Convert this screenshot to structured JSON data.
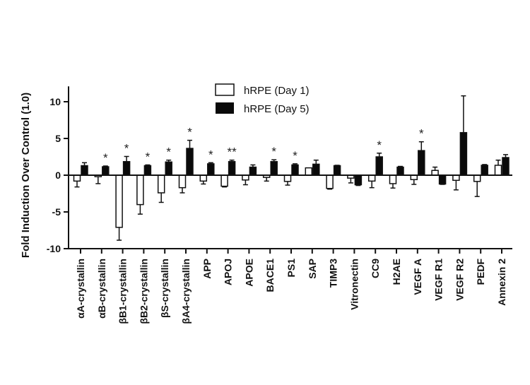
{
  "chart_data": {
    "type": "bar",
    "title": "",
    "xlabel": "",
    "ylabel": "Fold Induction Over Control (1.0)",
    "ylim": [
      -10,
      12
    ],
    "yticks": [
      -10,
      -5,
      0,
      5,
      10
    ],
    "ytick_labels": [
      "-10",
      "-5",
      "0",
      "5",
      "10"
    ],
    "legend_position": "top-center",
    "categories": [
      "αA-crystallin",
      "αB-crystallin",
      "βB1-crystallin",
      "βB2-crystallin",
      "βS-crystallin",
      "βA4-crystallin",
      "APP",
      "APOJ",
      "APOE",
      "BACE1",
      "PS1",
      "SAP",
      "TIMP3",
      "Vitronectin",
      "CC9",
      "H2AE",
      "VEGF A",
      "VEGF R1",
      "VEGF R2",
      "PEDF",
      "Annexin 2"
    ],
    "series": [
      {
        "name": "hRPE (Day 1)",
        "color": "#ffffff",
        "values": [
          -0.8,
          -0.2,
          -7.1,
          -4.0,
          -2.4,
          -1.7,
          -0.8,
          -1.5,
          -0.65,
          -0.3,
          -0.85,
          1.0,
          -1.8,
          -0.4,
          -0.8,
          -1.15,
          -0.6,
          0.65,
          -0.7,
          -0.85,
          1.35
        ],
        "errors": [
          0.8,
          0.95,
          1.75,
          1.3,
          1.3,
          0.7,
          0.4,
          0.1,
          0.65,
          0.5,
          0.5,
          0.0,
          0.1,
          0.65,
          0.9,
          0.6,
          0.65,
          0.45,
          1.3,
          2.05,
          0.7
        ]
      },
      {
        "name": "hRPE (Day 5)",
        "color": "#0a0a0a",
        "values": [
          1.3,
          1.15,
          1.85,
          1.3,
          1.8,
          3.65,
          1.55,
          1.85,
          1.1,
          1.85,
          1.4,
          1.5,
          1.3,
          -1.3,
          2.5,
          1.1,
          3.35,
          -1.2,
          5.8,
          1.35,
          2.4
        ],
        "errors": [
          0.4,
          0.1,
          0.7,
          0.1,
          0.25,
          1.1,
          0.15,
          0.2,
          0.3,
          0.25,
          0.15,
          0.55,
          0.05,
          0.1,
          0.5,
          0.1,
          1.2,
          0.05,
          5.0,
          0.1,
          0.4
        ]
      }
    ],
    "annotations": [
      "",
      "*",
      "*",
      "*",
      "*",
      "*",
      "*",
      "**",
      "",
      "*",
      "*",
      "",
      "",
      "",
      "*",
      "",
      "*",
      "",
      "",
      "",
      ""
    ]
  }
}
